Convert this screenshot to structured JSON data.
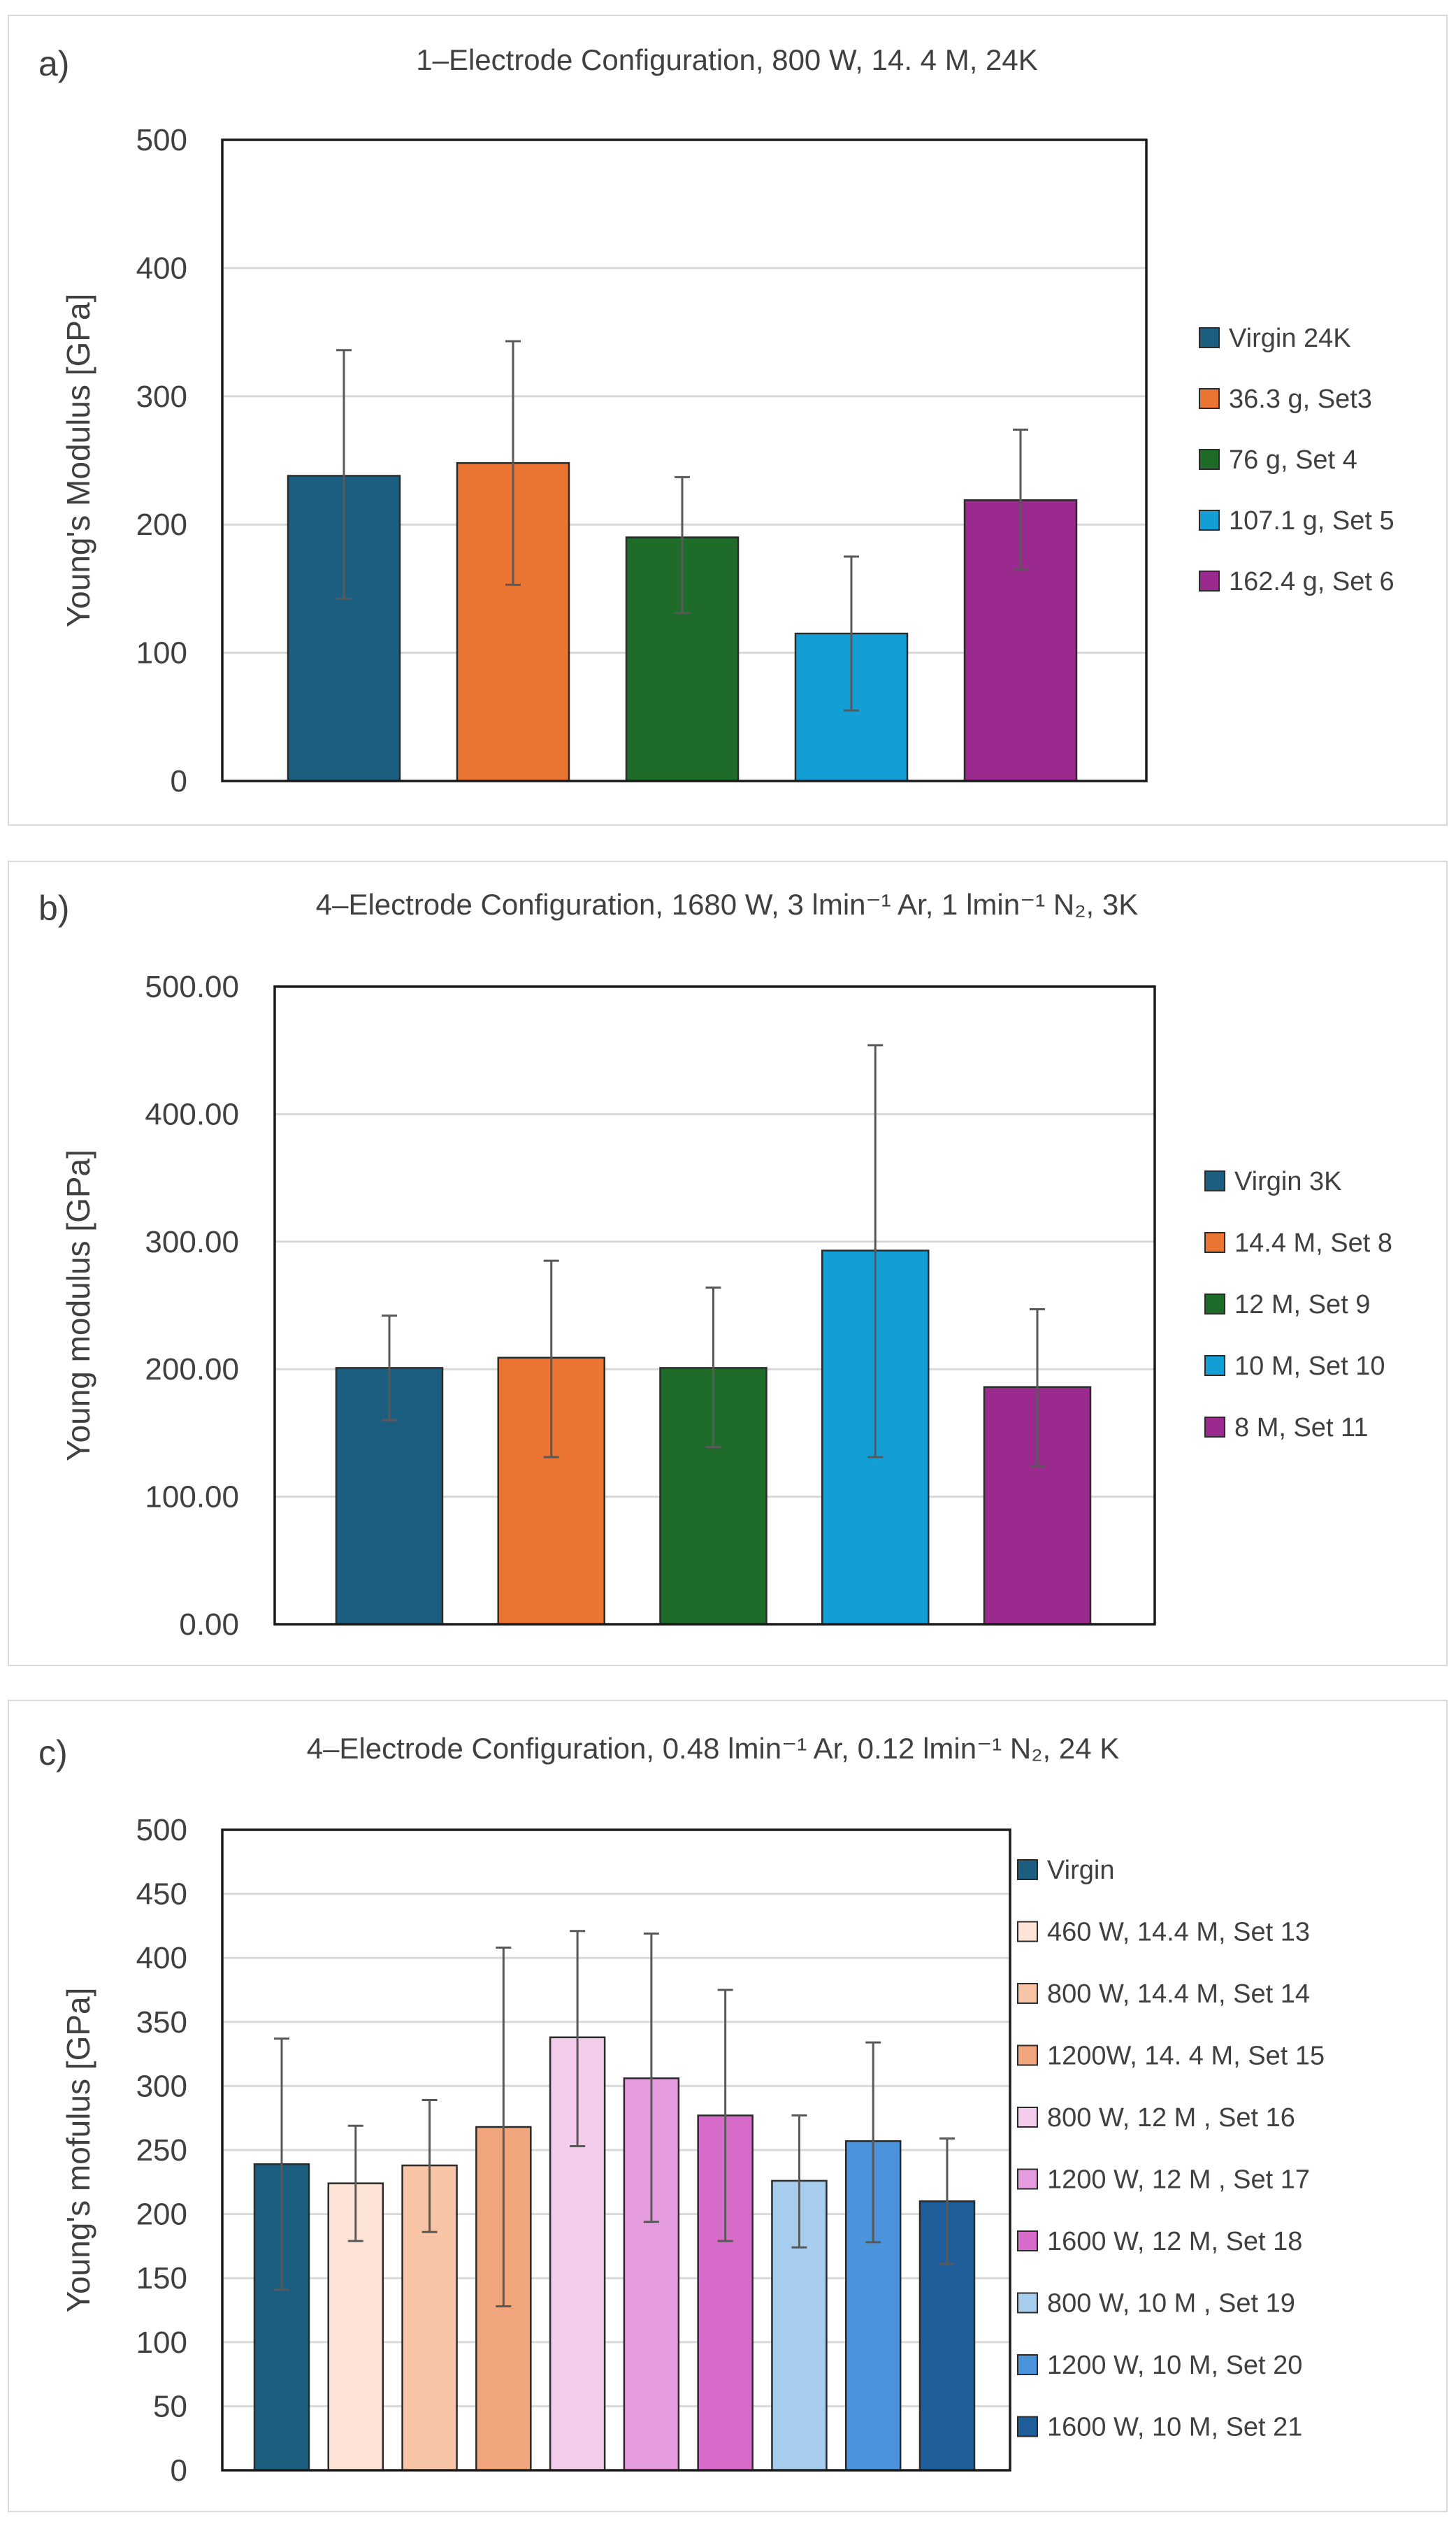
{
  "chart_data": [
    {
      "panel_label": "a)",
      "type": "bar",
      "title": "1–Electrode Configuration, 800 W, 14. 4 M, 24K",
      "ylabel": "Young's Modulus [GPa]",
      "xlabel": "",
      "ylim": [
        0,
        500
      ],
      "tick_step": 100,
      "tick_decimals": 0,
      "grid": true,
      "legend_position": "right",
      "series": [
        {
          "name": "Virgin 24K",
          "value": 238,
          "err_low": 142,
          "err_high": 336,
          "color": "#1b5e80"
        },
        {
          "name": "36.3 g, Set3",
          "value": 248,
          "err_low": 153,
          "err_high": 343,
          "color": "#ea7431"
        },
        {
          "name": " 76  g, Set 4",
          "value": 190,
          "err_low": 131,
          "err_high": 237,
          "color": "#1f6b2a"
        },
        {
          "name": "107.1 g, Set 5",
          "value": 115,
          "err_low": 55,
          "err_high": 175,
          "color": "#139fd6"
        },
        {
          "name": "162.4 g, Set 6",
          "value": 219,
          "err_low": 165,
          "err_high": 274,
          "color": "#9b2a8e"
        }
      ]
    },
    {
      "panel_label": "b)",
      "type": "bar",
      "title": "4–Electrode Configuration, 1680 W, 3 lmin⁻¹ Ar, 1 lmin⁻¹ N₂, 3K",
      "ylabel": "Young modulus [GPa]",
      "xlabel": "",
      "ylim": [
        0,
        500
      ],
      "tick_step": 100,
      "tick_decimals": 2,
      "grid": true,
      "legend_position": "right",
      "series": [
        {
          "name": "Virgin 3K",
          "value": 201,
          "err_low": 160,
          "err_high": 242,
          "color": "#1b5e80"
        },
        {
          "name": "14.4 M, Set 8",
          "value": 209,
          "err_low": 131,
          "err_high": 285,
          "color": "#ea7431"
        },
        {
          "name": "12 M, Set 9",
          "value": 201,
          "err_low": 139,
          "err_high": 264,
          "color": "#1f6b2a"
        },
        {
          "name": "10 M, Set 10",
          "value": 293,
          "err_low": 131,
          "err_high": 454,
          "color": "#139fd6"
        },
        {
          "name": "8 M, Set 11",
          "value": 186,
          "err_low": 124,
          "err_high": 247,
          "color": "#9b2a8e"
        }
      ]
    },
    {
      "panel_label": "c)",
      "type": "bar",
      "title": "4–Electrode Configuration, 0.48 lmin⁻¹ Ar, 0.12 lmin⁻¹ N₂, 24 K",
      "ylabel": "Young's mofulus [GPa]",
      "xlabel": "",
      "ylim": [
        0,
        500
      ],
      "tick_step": 50,
      "tick_decimals": 0,
      "grid": true,
      "legend_position": "right",
      "series": [
        {
          "name": "Virgin",
          "value": 239,
          "err_low": 141,
          "err_high": 337,
          "color": "#1b5e80"
        },
        {
          "name": "460 W, 14.4 M, Set 13",
          "value": 224,
          "err_low": 179,
          "err_high": 269,
          "color": "#fde4d6"
        },
        {
          "name": "800 W, 14.4 M, Set 14",
          "value": 238,
          "err_low": 186,
          "err_high": 289,
          "color": "#f7c4a6"
        },
        {
          "name": "1200W, 14. 4 M, Set 15",
          "value": 268,
          "err_low": 128,
          "err_high": 408,
          "color": "#f0a57d"
        },
        {
          "name": "800 W, 12 M , Set 16",
          "value": 338,
          "err_low": 253,
          "err_high": 421,
          "color": "#f3cbeb"
        },
        {
          "name": "1200 W, 12 M , Set 17",
          "value": 306,
          "err_low": 194,
          "err_high": 419,
          "color": "#e59cde"
        },
        {
          "name": "1600 W, 12 M, Set 18",
          "value": 277,
          "err_low": 179,
          "err_high": 375,
          "color": "#d66bc9"
        },
        {
          "name": "800 W, 10 M , Set 19",
          "value": 226,
          "err_low": 174,
          "err_high": 277,
          "color": "#a7cdee"
        },
        {
          "name": "1200 W, 10 M, Set 20",
          "value": 257,
          "err_low": 178,
          "err_high": 334,
          "color": "#4b94db"
        },
        {
          "name": "1600 W, 10 M, Set 21",
          "value": 210,
          "err_low": 161,
          "err_high": 259,
          "color": "#1e5e9a"
        }
      ]
    }
  ]
}
